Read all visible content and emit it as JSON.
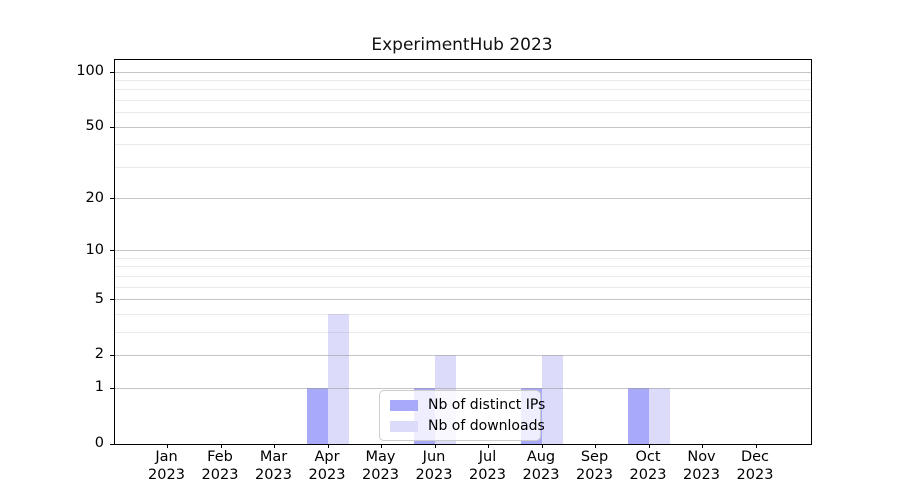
{
  "chart_data": {
    "type": "bar",
    "title": "ExperimentHub 2023",
    "categories": [
      "Jan",
      "Feb",
      "Mar",
      "Apr",
      "May",
      "Jun",
      "Jul",
      "Aug",
      "Sep",
      "Oct",
      "Nov",
      "Dec"
    ],
    "category_year": "2023",
    "series": [
      {
        "name": "Nb of distinct IPs",
        "color": "#a9a9fa",
        "values": [
          0,
          0,
          0,
          1,
          0,
          1,
          0,
          1,
          0,
          1,
          0,
          0
        ]
      },
      {
        "name": "Nb of downloads",
        "color": "#dcdcfa",
        "values": [
          0,
          0,
          0,
          4,
          0,
          2,
          0,
          2,
          0,
          1,
          0,
          0
        ]
      }
    ],
    "xlabel": "",
    "ylabel": "",
    "y_axis": {
      "scale": "log1p",
      "ticks": [
        0,
        1,
        2,
        5,
        10,
        20,
        50,
        100
      ],
      "minor_gridlines": [
        3,
        4,
        6,
        7,
        8,
        9,
        30,
        40,
        60,
        70,
        80,
        90
      ],
      "range": [
        0,
        115
      ]
    },
    "legend": {
      "position": "lower-center"
    }
  },
  "colors": {
    "bar_distinct_ips": "#a9a9fa",
    "bar_downloads": "#dcdcfa",
    "grid_major": "#bcbcbc",
    "grid_minor": "#e7e7e7",
    "axis": "#000000",
    "legend_border": "#cccccc",
    "background": "#ffffff"
  }
}
